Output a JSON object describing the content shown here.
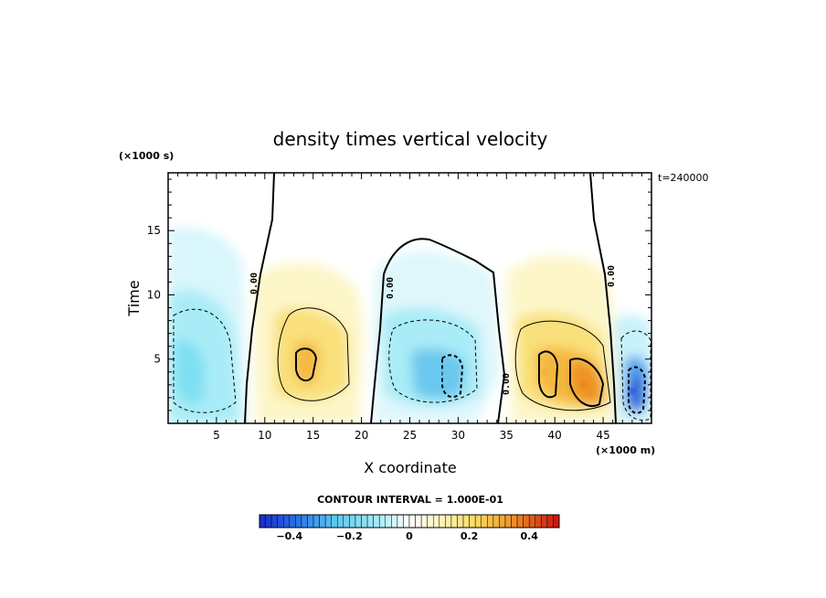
{
  "chart_data": {
    "type": "heatmap",
    "title": "density times vertical velocity",
    "xlabel": "X coordinate",
    "ylabel": "Time",
    "x_unit_label": "(×1000 m)",
    "y_unit_label": "(×1000 s)",
    "xlim": [
      0,
      50
    ],
    "ylim": [
      0,
      19.5
    ],
    "x_ticks": [
      5,
      10,
      15,
      20,
      25,
      30,
      35,
      40,
      45
    ],
    "y_ticks": [
      5,
      10,
      15
    ],
    "annotation": "t=240000",
    "contour_interval_text": "CONTOUR INTERVAL = 1.000E-01",
    "zero_contour_label": "0.00",
    "colorbar": {
      "range": [
        -0.5,
        0.5
      ],
      "ticks": [
        -0.4,
        -0.2,
        0,
        0.2,
        0.4
      ],
      "tick_labels": [
        "−0.4",
        "−0.2",
        "0",
        "0.2",
        "0.4"
      ],
      "negative_color": "#1a2fd0",
      "zero_color": "#ffffff",
      "positive_color": "#c81010"
    },
    "cells": [
      {
        "x": 2,
        "y": 4,
        "value": -0.17
      },
      {
        "x": 14,
        "y": 5,
        "value": 0.27
      },
      {
        "x": 28.5,
        "y": 4,
        "value": -0.24
      },
      {
        "x": 39,
        "y": 4,
        "value": 0.3
      },
      {
        "x": 43,
        "y": 3,
        "value": 0.37
      },
      {
        "x": 48,
        "y": 2.5,
        "value": -0.42
      }
    ]
  }
}
